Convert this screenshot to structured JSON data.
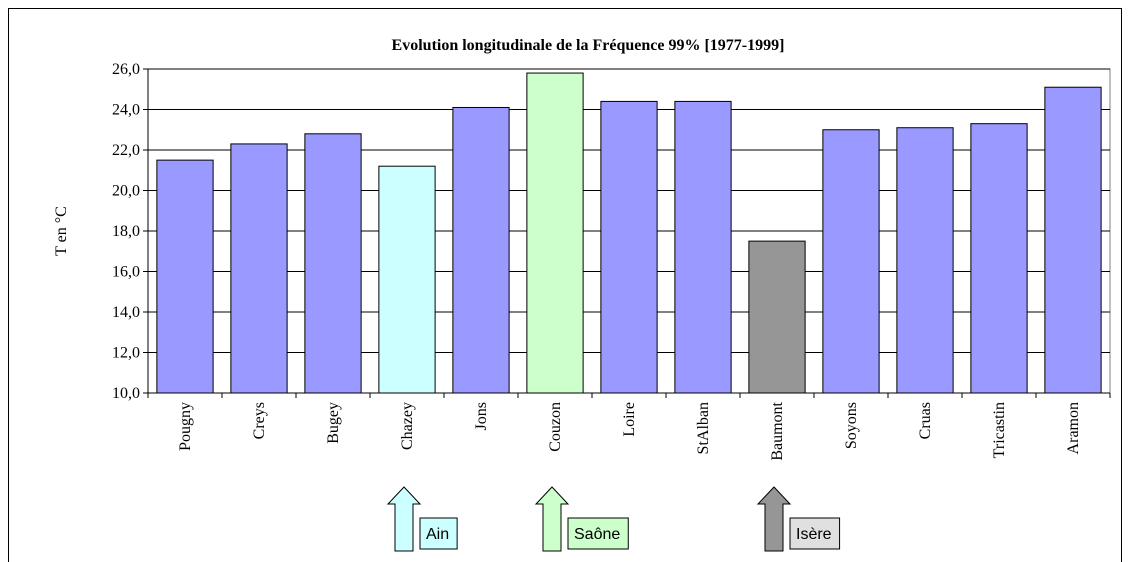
{
  "chart_data": {
    "type": "bar",
    "title": "Evolution longitudinale de la Fréquence 99%  [1977-1999]",
    "y_label": "T en °C",
    "categories": [
      "Pougny",
      "Creys",
      "Bugey",
      "Chazey",
      "Jons",
      "Couzon",
      "Loire",
      "StAlban",
      "Baumont",
      "Soyons",
      "Cruas",
      "Tricastin",
      "Aramon"
    ],
    "values": [
      21.5,
      22.3,
      22.8,
      21.2,
      24.1,
      25.8,
      24.4,
      24.4,
      17.5,
      23.0,
      23.1,
      23.3,
      25.1
    ],
    "colors": [
      "#9999ff",
      "#9999ff",
      "#9999ff",
      "#ccffff",
      "#9999ff",
      "#ccffcc",
      "#9999ff",
      "#9999ff",
      "#969696",
      "#9999ff",
      "#9999ff",
      "#9999ff",
      "#9999ff"
    ],
    "ylim": [
      10,
      26
    ],
    "yticks": [
      {
        "value": 10,
        "label": "10,0"
      },
      {
        "value": 12,
        "label": "12,0"
      },
      {
        "value": 14,
        "label": "14,0"
      },
      {
        "value": 16,
        "label": "16,0"
      },
      {
        "value": 18,
        "label": "18,0"
      },
      {
        "value": 20,
        "label": "20,0"
      },
      {
        "value": 22,
        "label": "22,0"
      },
      {
        "value": 24,
        "label": "24,0"
      },
      {
        "value": 26,
        "label": "26,0"
      }
    ],
    "grid": true,
    "annotations": [
      "Ain",
      "Saône",
      "Isère"
    ]
  }
}
